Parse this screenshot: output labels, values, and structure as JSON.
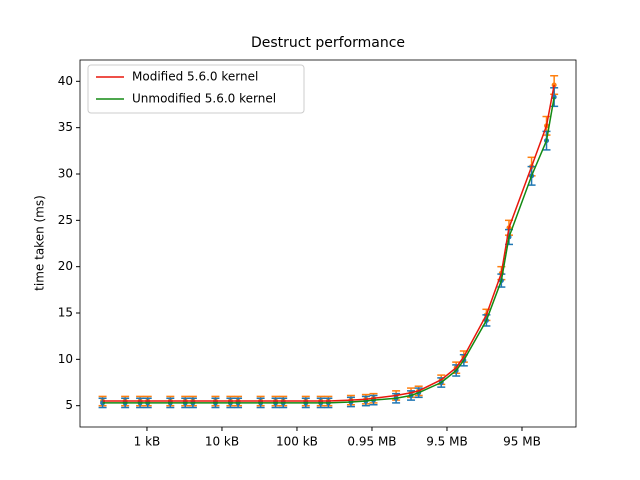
{
  "chart_data": {
    "type": "line",
    "title": "Destruct performance",
    "ylabel": "time taken (ms)",
    "xscale": "log",
    "xlim": [
      128,
      525000000
    ],
    "ylim": [
      2.7,
      42.3
    ],
    "xticks": [
      {
        "value": 1000,
        "label": "1 kB"
      },
      {
        "value": 10000,
        "label": "10 kB"
      },
      {
        "value": 100000,
        "label": "100 kB"
      },
      {
        "value": 1000000,
        "label": "0.95 MB"
      },
      {
        "value": 10000000,
        "label": "9.5 MB"
      },
      {
        "value": 100000000,
        "label": "95 MB"
      }
    ],
    "yticks": [
      5,
      10,
      15,
      20,
      25,
      30,
      35,
      40
    ],
    "legend": "upper left",
    "x": [
      256,
      512,
      810,
      1024,
      2048,
      3240,
      4096,
      8192,
      12960,
      16384,
      32768,
      51840,
      65536,
      131072,
      207360,
      262144,
      524288,
      829440,
      1048576,
      2097152,
      3317760,
      4194304,
      8388608,
      13271040,
      16777216,
      33554432,
      53084160,
      67108864,
      134217728,
      212336640,
      268435456
    ],
    "series": [
      {
        "name": "Modified 5.6.0 kernel",
        "color": "#e8170b",
        "error_color": "#ff7f0e",
        "values": [
          5.5,
          5.5,
          5.5,
          5.5,
          5.5,
          5.5,
          5.5,
          5.5,
          5.5,
          5.5,
          5.5,
          5.5,
          5.5,
          5.5,
          5.5,
          5.5,
          5.6,
          5.7,
          5.8,
          6.1,
          6.4,
          6.6,
          7.8,
          9.1,
          10.3,
          14.8,
          19.3,
          24.2,
          30.8,
          35.2,
          39.6
        ],
        "errors": [
          0.5,
          0.5,
          0.5,
          0.5,
          0.5,
          0.5,
          0.5,
          0.5,
          0.5,
          0.5,
          0.5,
          0.5,
          0.5,
          0.5,
          0.5,
          0.5,
          0.5,
          0.5,
          0.5,
          0.5,
          0.5,
          0.5,
          0.5,
          0.6,
          0.6,
          0.6,
          0.7,
          0.8,
          1.0,
          1.0,
          1.0
        ]
      },
      {
        "name": "Unmodified 5.6.0 kernel",
        "color": "#138a13",
        "error_color": "#1f77b4",
        "values": [
          5.3,
          5.3,
          5.3,
          5.3,
          5.3,
          5.3,
          5.3,
          5.3,
          5.3,
          5.3,
          5.3,
          5.3,
          5.3,
          5.3,
          5.3,
          5.3,
          5.4,
          5.5,
          5.6,
          5.8,
          6.1,
          6.4,
          7.5,
          8.8,
          9.9,
          14.2,
          18.5,
          23.2,
          29.8,
          33.6,
          38.3
        ],
        "errors": [
          0.5,
          0.5,
          0.5,
          0.5,
          0.5,
          0.5,
          0.5,
          0.5,
          0.5,
          0.5,
          0.5,
          0.5,
          0.5,
          0.5,
          0.5,
          0.5,
          0.5,
          0.5,
          0.5,
          0.5,
          0.5,
          0.5,
          0.5,
          0.6,
          0.6,
          0.6,
          0.7,
          0.8,
          1.0,
          1.0,
          1.0
        ]
      }
    ]
  }
}
